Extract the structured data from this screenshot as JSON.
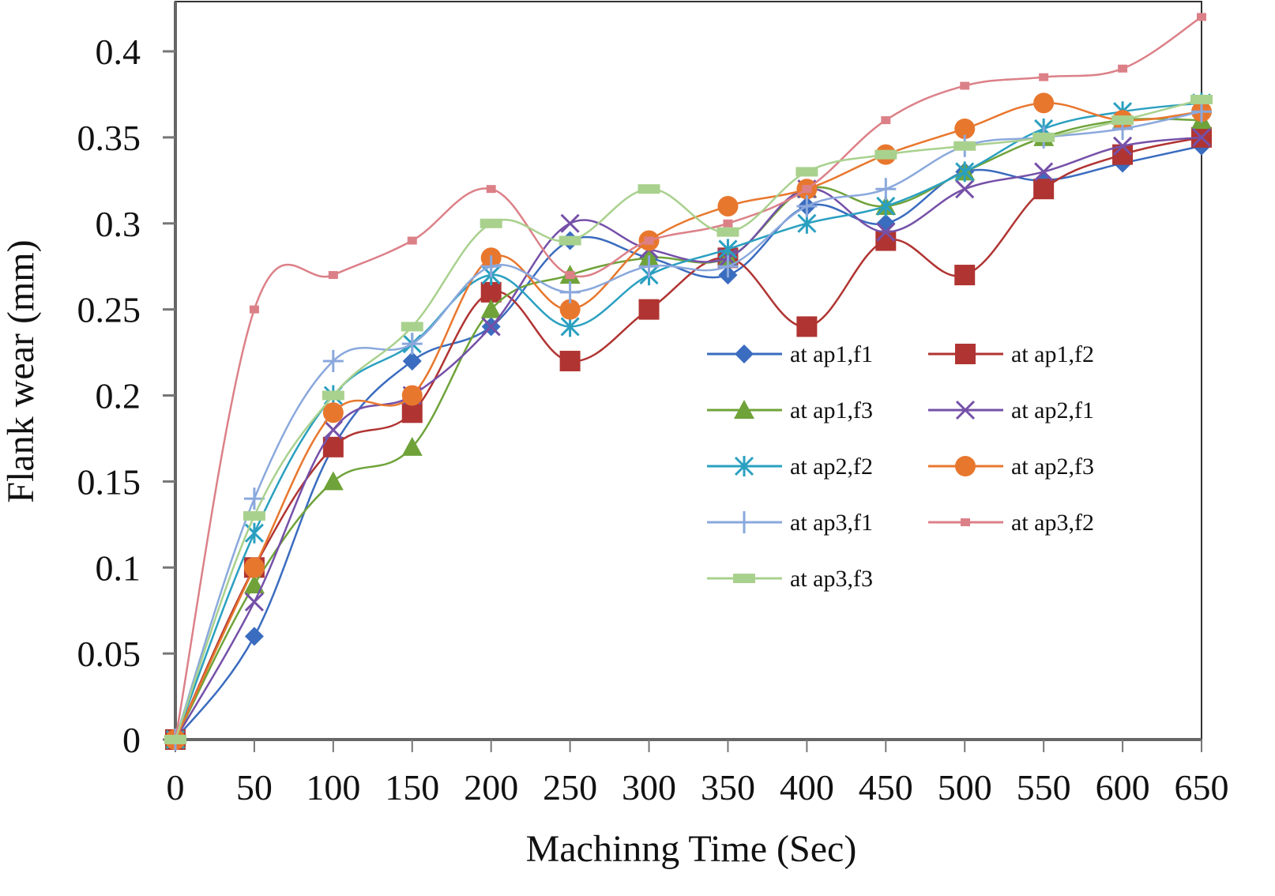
{
  "chart_data": {
    "type": "line",
    "title": "",
    "xlabel": "Machinng Time (Sec)",
    "ylabel": "Flank wear (mm)",
    "xlim": [
      0,
      650
    ],
    "ylim": [
      0,
      0.4
    ],
    "x": [
      0,
      50,
      100,
      150,
      200,
      250,
      300,
      350,
      400,
      450,
      500,
      550,
      600,
      650
    ],
    "x_ticks": [
      "0",
      "50",
      "100",
      "150",
      "200",
      "250",
      "300",
      "350",
      "400",
      "450",
      "500",
      "550",
      "600",
      "650"
    ],
    "y_ticks": [
      "0",
      "0.05",
      "0.1",
      "0.15",
      "0.2",
      "0.25",
      "0.3",
      "0.35",
      "0.4"
    ],
    "grid": false,
    "legend_position": "center-right",
    "series": [
      {
        "name": "at ap1,f1",
        "color": "#3a6cbf",
        "marker": "diamond",
        "values": [
          0,
          0.06,
          0.17,
          0.22,
          0.24,
          0.29,
          0.28,
          0.27,
          0.31,
          0.3,
          0.33,
          0.325,
          0.335,
          0.345
        ]
      },
      {
        "name": "at ap1,f2",
        "color": "#b03432",
        "marker": "square",
        "values": [
          0,
          0.1,
          0.17,
          0.19,
          0.26,
          0.22,
          0.25,
          0.28,
          0.24,
          0.29,
          0.27,
          0.32,
          0.34,
          0.35
        ]
      },
      {
        "name": "at ap1,f3",
        "color": "#6fa33a",
        "marker": "triangle",
        "values": [
          0,
          0.09,
          0.15,
          0.17,
          0.25,
          0.27,
          0.28,
          0.28,
          0.32,
          0.31,
          0.33,
          0.35,
          0.36,
          0.36
        ]
      },
      {
        "name": "at ap2,f1",
        "color": "#7550a8",
        "marker": "x",
        "values": [
          0,
          0.08,
          0.18,
          0.2,
          0.24,
          0.3,
          0.285,
          0.28,
          0.32,
          0.295,
          0.32,
          0.33,
          0.345,
          0.35
        ]
      },
      {
        "name": "at ap2,f2",
        "color": "#2aa0c0",
        "marker": "star",
        "values": [
          0,
          0.12,
          0.2,
          0.23,
          0.27,
          0.24,
          0.27,
          0.285,
          0.3,
          0.31,
          0.33,
          0.355,
          0.365,
          0.37
        ]
      },
      {
        "name": "at ap2,f3",
        "color": "#e8772e",
        "marker": "circle",
        "values": [
          0,
          0.1,
          0.19,
          0.2,
          0.28,
          0.25,
          0.29,
          0.31,
          0.32,
          0.34,
          0.355,
          0.37,
          0.36,
          0.365
        ]
      },
      {
        "name": "at ap3,f1",
        "color": "#8aa8dc",
        "marker": "plus",
        "values": [
          0,
          0.14,
          0.22,
          0.23,
          0.275,
          0.26,
          0.275,
          0.275,
          0.31,
          0.32,
          0.345,
          0.35,
          0.355,
          0.365
        ]
      },
      {
        "name": "at ap3,f2",
        "color": "#dc8088",
        "marker": "small-square",
        "values": [
          0,
          0.25,
          0.27,
          0.29,
          0.32,
          0.27,
          0.29,
          0.3,
          0.32,
          0.36,
          0.38,
          0.385,
          0.39,
          0.42
        ]
      },
      {
        "name": "at ap3,f3",
        "color": "#a9d18e",
        "marker": "dash",
        "values": [
          0,
          0.13,
          0.2,
          0.24,
          0.3,
          0.29,
          0.32,
          0.295,
          0.33,
          0.34,
          0.345,
          0.35,
          0.36,
          0.372
        ]
      }
    ]
  }
}
